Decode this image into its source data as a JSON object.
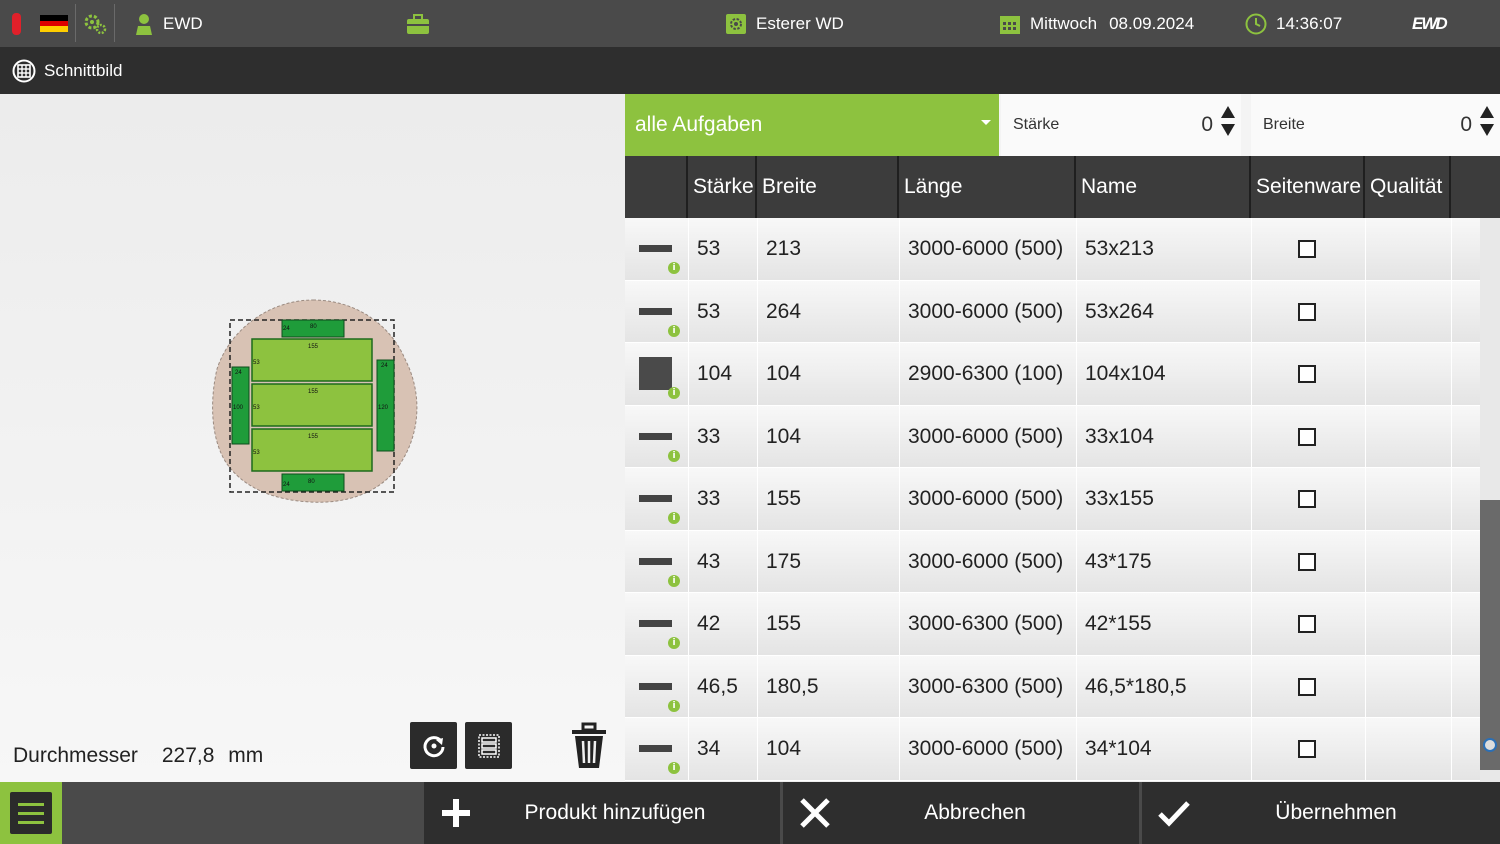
{
  "topbar": {
    "user": "EWD",
    "machine": "Esterer WD",
    "weekday": "Mittwoch",
    "date": "08.09.2024",
    "time": "14:36:07",
    "logo": "EWD",
    "accent_color": "#8dc23f",
    "led_color": "#e0202a"
  },
  "titlebar": {
    "title": "Schnittbild"
  },
  "diagram": {
    "labels": [
      "24",
      "80",
      "155",
      "155",
      "155",
      "53",
      "53",
      "53",
      "24",
      "100",
      "24",
      "120",
      "24",
      "80"
    ]
  },
  "diameter": {
    "label": "Durchmesser",
    "value": "227,8",
    "unit": "mm"
  },
  "filters": {
    "task_filter": "alle Aufgaben",
    "staerke_label": "Stärke",
    "staerke_value": "0",
    "breite_label": "Breite",
    "breite_value": "0"
  },
  "table": {
    "headers": [
      "Stärke",
      "Breite",
      "Länge",
      "Name",
      "Seitenware",
      "Qualität"
    ],
    "rows": [
      {
        "shape": "bar",
        "staerke": "53",
        "breite": "213",
        "laenge": "3000-6000 (500)",
        "name": "53x213",
        "seitenware": false
      },
      {
        "shape": "bar",
        "staerke": "53",
        "breite": "264",
        "laenge": "3000-6000 (500)",
        "name": "53x264",
        "seitenware": false
      },
      {
        "shape": "square",
        "staerke": "104",
        "breite": "104",
        "laenge": "2900-6300 (100)",
        "name": "104x104",
        "seitenware": false
      },
      {
        "shape": "bar",
        "staerke": "33",
        "breite": "104",
        "laenge": "3000-6000 (500)",
        "name": "33x104",
        "seitenware": false
      },
      {
        "shape": "bar",
        "staerke": "33",
        "breite": "155",
        "laenge": "3000-6000 (500)",
        "name": "33x155",
        "seitenware": false
      },
      {
        "shape": "bar",
        "staerke": "43",
        "breite": "175",
        "laenge": "3000-6000 (500)",
        "name": "43*175",
        "seitenware": false
      },
      {
        "shape": "bar",
        "staerke": "42",
        "breite": "155",
        "laenge": "3000-6300 (500)",
        "name": "42*155",
        "seitenware": false
      },
      {
        "shape": "bar",
        "staerke": "46,5",
        "breite": "180,5",
        "laenge": "3000-6300 (500)",
        "name": "46,5*180,5",
        "seitenware": false
      },
      {
        "shape": "bar",
        "staerke": "34",
        "breite": "104",
        "laenge": "3000-6000 (500)",
        "name": "34*104",
        "seitenware": false
      }
    ]
  },
  "bottombar": {
    "add": "Produkt hinzufügen",
    "cancel": "Abbrechen",
    "apply": "Übernehmen"
  }
}
